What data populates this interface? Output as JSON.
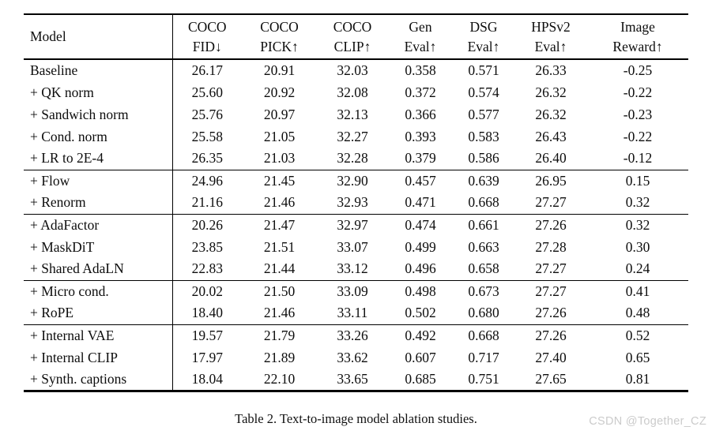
{
  "table": {
    "caption": "Table 2. Text-to-image model ablation studies.",
    "header": {
      "model_label": "Model",
      "metric_columns": [
        {
          "line1": "COCO",
          "line2": "FID↓"
        },
        {
          "line1": "COCO",
          "line2": "PICK↑"
        },
        {
          "line1": "COCO",
          "line2": "CLIP↑"
        },
        {
          "line1": "Gen",
          "line2": "Eval↑"
        },
        {
          "line1": "DSG",
          "line2": "Eval↑"
        },
        {
          "line1": "HPSv2",
          "line2": "Eval↑"
        },
        {
          "line1": "Image",
          "line2": "Reward↑"
        }
      ]
    },
    "groups": [
      {
        "rows": [
          {
            "model": "Baseline",
            "values": [
              "26.17",
              "20.91",
              "32.03",
              "0.358",
              "0.571",
              "26.33",
              "-0.25"
            ],
            "bold_values": []
          },
          {
            "model": "+ QK norm",
            "values": [
              "25.60",
              "20.92",
              "32.08",
              "0.372",
              "0.574",
              "26.32",
              "-0.22"
            ],
            "bold_values": []
          },
          {
            "model": "+ Sandwich norm",
            "values": [
              "25.76",
              "20.97",
              "32.13",
              "0.366",
              "0.577",
              "26.32",
              "-0.23"
            ],
            "bold_values": []
          },
          {
            "model": "+ Cond. norm",
            "values": [
              "25.58",
              "21.05",
              "32.27",
              "0.393",
              "0.583",
              "26.43",
              "-0.22"
            ],
            "bold_values": []
          },
          {
            "model": "+ LR to 2E-4",
            "values": [
              "26.35",
              "21.03",
              "32.28",
              "0.379",
              "0.586",
              "26.40",
              "-0.12"
            ],
            "bold_values": []
          }
        ]
      },
      {
        "rows": [
          {
            "model": "+ Flow",
            "values": [
              "24.96",
              "21.45",
              "32.90",
              "0.457",
              "0.639",
              "26.95",
              "0.15"
            ],
            "bold_values": []
          },
          {
            "model": "+ Renorm",
            "values": [
              "21.16",
              "21.46",
              "32.93",
              "0.471",
              "0.668",
              "27.27",
              "0.32"
            ],
            "bold_values": []
          }
        ]
      },
      {
        "rows": [
          {
            "model": "+ AdaFactor",
            "values": [
              "20.26",
              "21.47",
              "32.97",
              "0.474",
              "0.661",
              "27.26",
              "0.32"
            ],
            "bold_values": []
          },
          {
            "model": "+ MaskDiT",
            "values": [
              "23.85",
              "21.51",
              "33.07",
              "0.499",
              "0.663",
              "27.28",
              "0.30"
            ],
            "bold_values": []
          },
          {
            "model": "+ Shared AdaLN",
            "values": [
              "22.83",
              "21.44",
              "33.12",
              "0.496",
              "0.658",
              "27.27",
              "0.24"
            ],
            "bold_values": []
          }
        ]
      },
      {
        "rows": [
          {
            "model": "+ Micro cond.",
            "values": [
              "20.02",
              "21.50",
              "33.09",
              "0.498",
              "0.673",
              "27.27",
              "0.41"
            ],
            "bold_values": []
          },
          {
            "model": "+ RoPE",
            "values": [
              "18.40",
              "21.46",
              "33.11",
              "0.502",
              "0.680",
              "27.26",
              "0.48"
            ],
            "bold_values": []
          }
        ]
      },
      {
        "rows": [
          {
            "model": "+ Internal VAE",
            "values": [
              "19.57",
              "21.79",
              "33.26",
              "0.492",
              "0.668",
              "27.26",
              "0.52"
            ],
            "bold_values": []
          },
          {
            "model": "+ Internal CLIP",
            "values": [
              "17.97",
              "21.89",
              "33.62",
              "0.607",
              "0.717",
              "27.40",
              "0.65"
            ],
            "bold_values": [
              0
            ]
          },
          {
            "model": "+ Synth. captions",
            "values": [
              "18.04",
              "22.10",
              "33.65",
              "0.685",
              "0.751",
              "27.65",
              "0.81"
            ],
            "bold_values": [
              1,
              2,
              3,
              4,
              5,
              6
            ]
          }
        ]
      }
    ]
  },
  "watermark": "CSDN @Together_CZ",
  "colors": {
    "background": "#ffffff",
    "text": "#0d0d0d",
    "rule": "#000000",
    "watermark": "#cbcbcb"
  }
}
